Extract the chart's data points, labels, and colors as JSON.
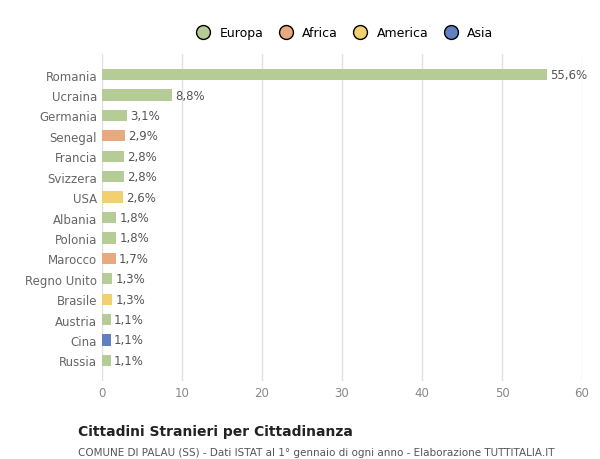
{
  "categories": [
    "Russia",
    "Cina",
    "Austria",
    "Brasile",
    "Regno Unito",
    "Marocco",
    "Polonia",
    "Albania",
    "USA",
    "Svizzera",
    "Francia",
    "Senegal",
    "Germania",
    "Ucraina",
    "Romania"
  ],
  "values": [
    1.1,
    1.1,
    1.1,
    1.3,
    1.3,
    1.7,
    1.8,
    1.8,
    2.6,
    2.8,
    2.8,
    2.9,
    3.1,
    8.8,
    55.6
  ],
  "labels": [
    "1,1%",
    "1,1%",
    "1,1%",
    "1,3%",
    "1,3%",
    "1,7%",
    "1,8%",
    "1,8%",
    "2,6%",
    "2,8%",
    "2,8%",
    "2,9%",
    "3,1%",
    "8,8%",
    "55,6%"
  ],
  "continent": [
    "Europa",
    "Asia",
    "Europa",
    "America",
    "Europa",
    "Africa",
    "Europa",
    "Europa",
    "America",
    "Europa",
    "Europa",
    "Africa",
    "Europa",
    "Europa",
    "Europa"
  ],
  "colors": {
    "Europa": "#b5cc96",
    "Africa": "#e8a97e",
    "America": "#f0d070",
    "Asia": "#6080c0"
  },
  "legend_labels": [
    "Europa",
    "Africa",
    "America",
    "Asia"
  ],
  "legend_colors": [
    "#b5cc96",
    "#e8a97e",
    "#f0d070",
    "#6080c0"
  ],
  "xlim": [
    0,
    60
  ],
  "xticks": [
    0,
    10,
    20,
    30,
    40,
    50,
    60
  ],
  "title": "Cittadini Stranieri per Cittadinanza",
  "subtitle": "COMUNE DI PALAU (SS) - Dati ISTAT al 1° gennaio di ogni anno - Elaborazione TUTTITALIA.IT",
  "bar_height": 0.55,
  "background_color": "#ffffff",
  "grid_color": "#e0e0e0",
  "label_fontsize": 8.5,
  "tick_fontsize": 8.5,
  "title_fontsize": 10,
  "subtitle_fontsize": 7.5
}
